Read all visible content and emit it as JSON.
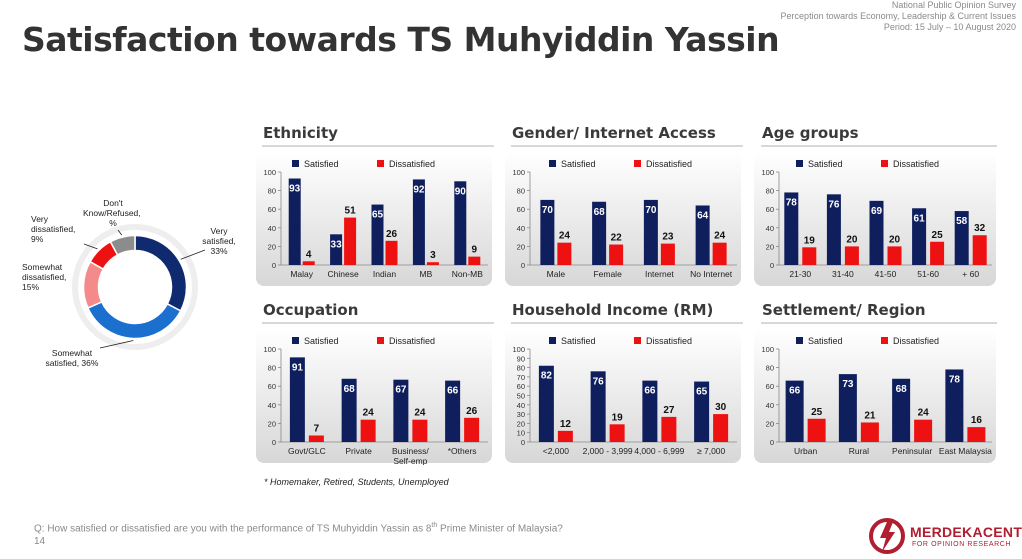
{
  "header": {
    "line1": "National Public Opinion Survey",
    "line2": "Perception towards Economy, Leadership & Current Issues",
    "line3": "Period: 15 July – 10 August 2020"
  },
  "title": "Satisfaction towards TS Muhyiddin Yassin",
  "footnote": "* Homemaker, Retired, Students, Unemployed",
  "question_prefix": "Q: How satisfied or dissatisfied are you with the performance of TS Muhyiddin Yassin as 8",
  "question_sup": "th",
  "question_suffix": " Prime Minister of Malaysia?",
  "page_number": "14",
  "logo": {
    "name": "MERDEKACENTER",
    "sub": "FOR OPINION RESEARCH"
  },
  "colors": {
    "satisfied": "#0f1f5e",
    "dissatisfied": "#ee1111"
  },
  "chart_data": [
    {
      "type": "pie",
      "labels": [
        "Very satisfied, 33%",
        "Somewhat satisfied, 36%",
        "Somewhat dissatisfied, 15%",
        "Very dissatisfied, 9%",
        "Don't Know/Refused, 8%"
      ],
      "values": [
        33,
        36,
        15,
        9,
        8
      ],
      "colors": [
        "#0f2a6e",
        "#1a6fcf",
        "#f58a8a",
        "#ee1111",
        "#8c8c8c"
      ]
    },
    {
      "type": "bar",
      "title": "Ethnicity",
      "ylim": [
        0,
        100
      ],
      "yticks": [
        0,
        20,
        40,
        60,
        80,
        100
      ],
      "categories": [
        "Malay",
        "Chinese",
        "Indian",
        "MB",
        "Non-MB"
      ],
      "series": [
        {
          "name": "Satisfied",
          "values": [
            93,
            33,
            65,
            92,
            90
          ]
        },
        {
          "name": "Dissatisfied",
          "values": [
            4,
            51,
            26,
            3,
            9
          ]
        }
      ]
    },
    {
      "type": "bar",
      "title": "Gender/ Internet Access",
      "ylim": [
        0,
        100
      ],
      "yticks": [
        0,
        20,
        40,
        60,
        80,
        100
      ],
      "categories": [
        "Male",
        "Female",
        "Internet",
        "No Internet"
      ],
      "series": [
        {
          "name": "Satisfied",
          "values": [
            70,
            68,
            70,
            64
          ]
        },
        {
          "name": "Dissatisfied",
          "values": [
            24,
            22,
            23,
            24
          ]
        }
      ]
    },
    {
      "type": "bar",
      "title": "Age groups",
      "ylim": [
        0,
        100
      ],
      "yticks": [
        0,
        20,
        40,
        60,
        80,
        100
      ],
      "categories": [
        "21-30",
        "31-40",
        "41-50",
        "51-60",
        "+ 60"
      ],
      "series": [
        {
          "name": "Satisfied",
          "values": [
            78,
            76,
            69,
            61,
            58
          ]
        },
        {
          "name": "Dissatisfied",
          "values": [
            19,
            20,
            20,
            25,
            32
          ]
        }
      ]
    },
    {
      "type": "bar",
      "title": "Occupation",
      "ylim": [
        0,
        100
      ],
      "yticks": [
        0,
        20,
        40,
        60,
        80,
        100
      ],
      "categories": [
        "Govt/GLC",
        "Private",
        "Business/ Self-emp",
        "*Others"
      ],
      "series": [
        {
          "name": "Satisfied",
          "values": [
            91,
            68,
            67,
            66
          ]
        },
        {
          "name": "Dissatisfied",
          "values": [
            7,
            24,
            24,
            26
          ]
        }
      ]
    },
    {
      "type": "bar",
      "title": "Household Income (RM)",
      "ylim": [
        0,
        100
      ],
      "yticks": [
        0,
        10,
        20,
        30,
        40,
        50,
        60,
        70,
        80,
        90,
        100
      ],
      "categories": [
        "<2,000",
        "2,000 - 3,999",
        "4,000 - 6,999",
        "≥ 7,000"
      ],
      "series": [
        {
          "name": "Satisfied",
          "values": [
            82,
            76,
            66,
            65
          ]
        },
        {
          "name": "Dissatisfied",
          "values": [
            12,
            19,
            27,
            30
          ]
        }
      ]
    },
    {
      "type": "bar",
      "title": "Settlement/ Region",
      "ylim": [
        0,
        100
      ],
      "yticks": [
        0,
        20,
        40,
        60,
        80,
        100
      ],
      "categories": [
        "Urban",
        "Rural",
        "Peninsular",
        "East Malaysia"
      ],
      "series": [
        {
          "name": "Satisfied",
          "values": [
            66,
            73,
            68,
            78
          ]
        },
        {
          "name": "Dissatisfied",
          "values": [
            25,
            21,
            24,
            16
          ]
        }
      ]
    }
  ]
}
